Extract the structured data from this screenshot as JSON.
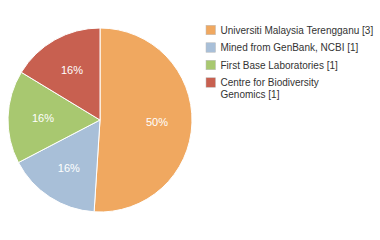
{
  "chart_data": {
    "type": "pie",
    "categories": [
      "Universiti Malaysia Terengganu [3]",
      "Mined from GenBank, NCBI [1]",
      "First Base Laboratories [1]",
      "Centre for Biodiversity\nGenomics [1]"
    ],
    "values": [
      50,
      16,
      16,
      16
    ],
    "value_labels": [
      "50%",
      "16%",
      "16%",
      "16%"
    ],
    "colors": [
      "#F0A860",
      "#A8BFD8",
      "#A8C870",
      "#C86050"
    ],
    "data_labels": true,
    "legend": "right"
  }
}
